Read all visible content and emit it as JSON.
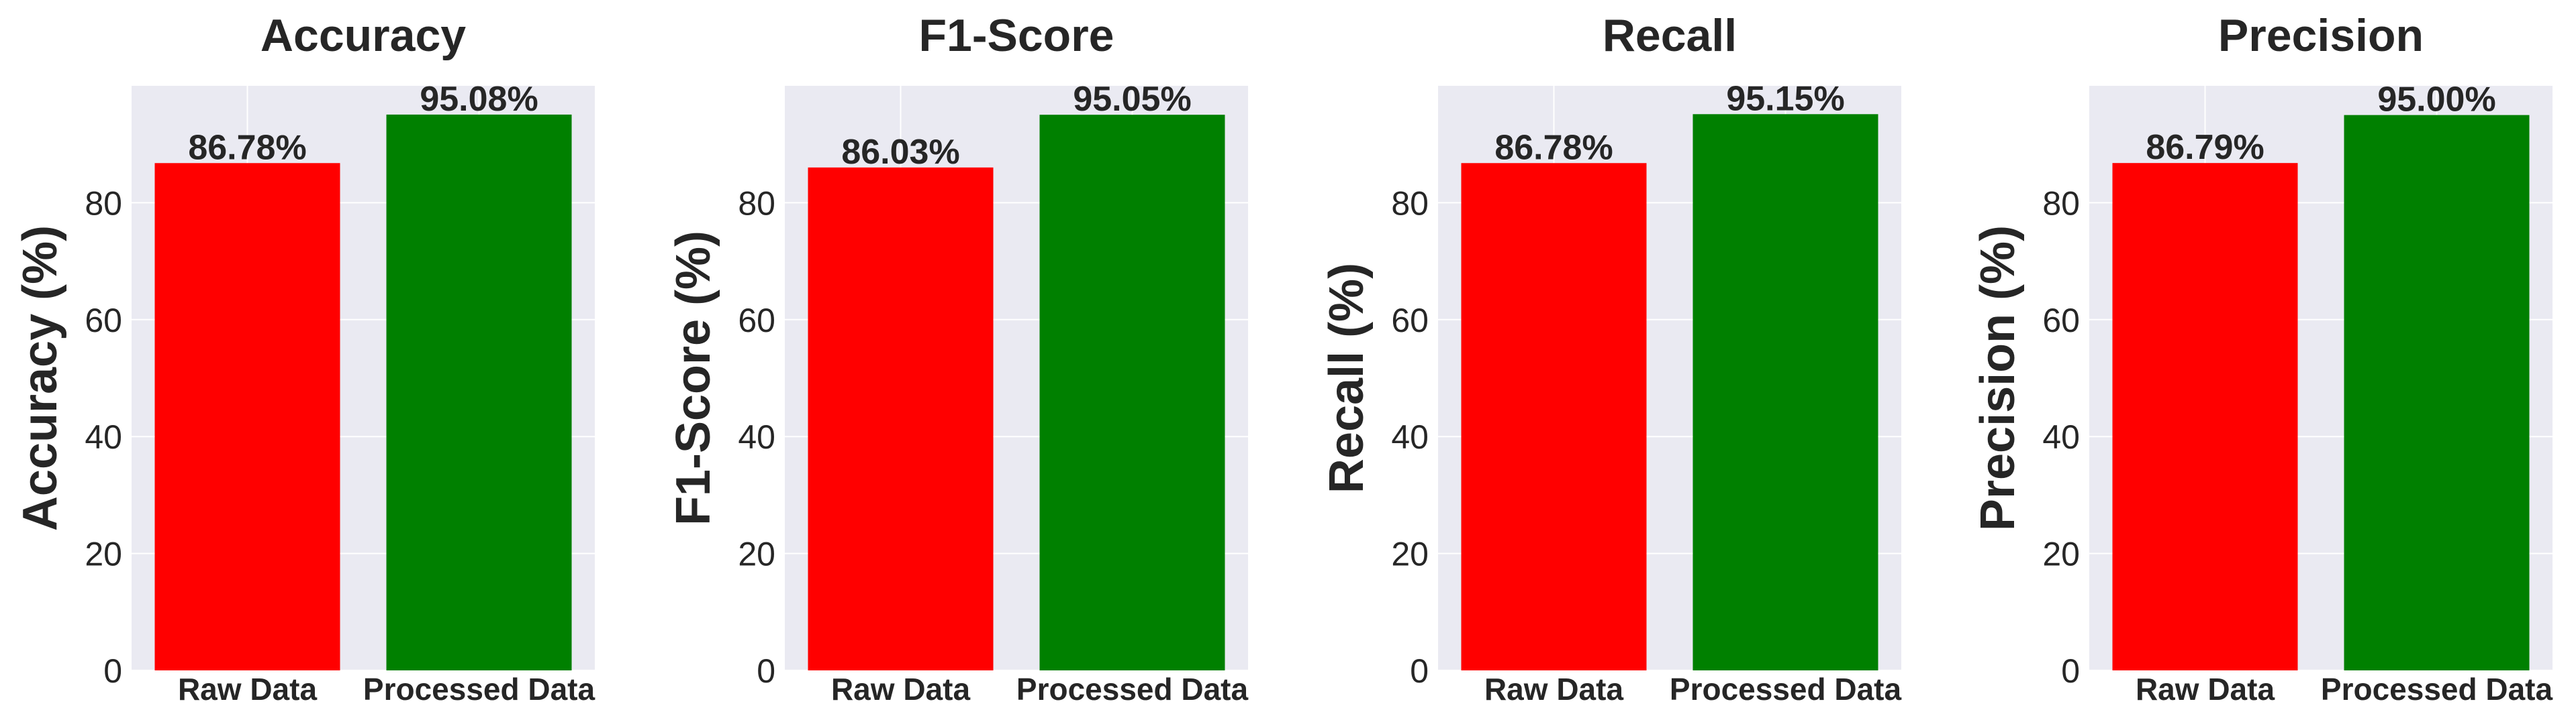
{
  "chart_data": [
    {
      "type": "bar",
      "title": "Accuracy",
      "ylabel": "Accuracy (%)",
      "xlabel": "",
      "categories": [
        "Raw Data",
        "Processed Data"
      ],
      "values": [
        86.78,
        95.08
      ],
      "value_labels": [
        "86.78%",
        "95.08%"
      ],
      "colors": [
        "#ff0000",
        "#008000"
      ],
      "ylim": [
        0,
        100
      ],
      "yticks": [
        0,
        20,
        40,
        60,
        80
      ],
      "grid": true
    },
    {
      "type": "bar",
      "title": "F1-Score",
      "ylabel": "F1-Score (%)",
      "xlabel": "",
      "categories": [
        "Raw Data",
        "Processed Data"
      ],
      "values": [
        86.03,
        95.05
      ],
      "value_labels": [
        "86.03%",
        "95.05%"
      ],
      "colors": [
        "#ff0000",
        "#008000"
      ],
      "ylim": [
        0,
        100
      ],
      "yticks": [
        0,
        20,
        40,
        60,
        80
      ],
      "grid": true
    },
    {
      "type": "bar",
      "title": "Recall",
      "ylabel": "Recall (%)",
      "xlabel": "",
      "categories": [
        "Raw Data",
        "Processed Data"
      ],
      "values": [
        86.78,
        95.15
      ],
      "value_labels": [
        "86.78%",
        "95.15%"
      ],
      "colors": [
        "#ff0000",
        "#008000"
      ],
      "ylim": [
        0,
        100
      ],
      "yticks": [
        0,
        20,
        40,
        60,
        80
      ],
      "grid": true
    },
    {
      "type": "bar",
      "title": "Precision",
      "ylabel": "Precision (%)",
      "xlabel": "",
      "categories": [
        "Raw Data",
        "Processed Data"
      ],
      "values": [
        86.79,
        95.0
      ],
      "value_labels": [
        "86.79%",
        "95.00%"
      ],
      "colors": [
        "#ff0000",
        "#008000"
      ],
      "ylim": [
        0,
        100
      ],
      "yticks": [
        0,
        20,
        40,
        60,
        80
      ],
      "grid": true
    }
  ],
  "style": {
    "plot_background": "#eaeaf2",
    "grid_color": "#ffffff",
    "text_color": "#262626"
  }
}
